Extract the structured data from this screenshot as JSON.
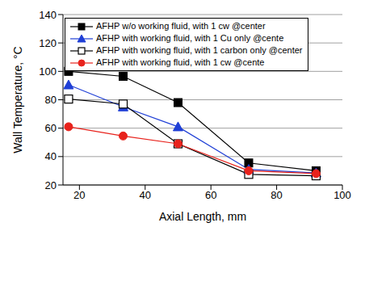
{
  "chart_data": {
    "type": "line",
    "x_label": "Axial Length, mm",
    "y_label": "Wall Temperature, °C",
    "xlim": [
      15,
      100
    ],
    "xticks": [
      20,
      40,
      60,
      80,
      100
    ],
    "ylim": [
      20,
      140
    ],
    "yticks": [
      20,
      40,
      60,
      80,
      100,
      120,
      140
    ],
    "grid": "y",
    "legend": "upper left",
    "x": [
      16.7,
      33.3,
      50,
      71.5,
      92
    ],
    "series": [
      {
        "name": "AFHP w/o working fluid, with 1 cw @center",
        "color": "#000000",
        "marker": "square",
        "values": [
          100,
          96.5,
          78,
          35.5,
          30
        ]
      },
      {
        "name": "AFHP with working fluid, with 1 Cu only @cente",
        "color": "#1f3fd6",
        "marker": "triangle",
        "values": [
          90.5,
          75,
          61,
          31,
          28.5
        ]
      },
      {
        "name": "AFHP with working fluid, with 1 carbon only @center",
        "color": "#000000",
        "marker": "open_square",
        "values": [
          80.5,
          77,
          49,
          27.5,
          26.5
        ]
      },
      {
        "name": "AFHP with working fluid, with 1 cw @cente",
        "color": "#e8221c",
        "marker": "circle",
        "values": [
          61,
          54.5,
          49,
          30,
          28
        ]
      }
    ]
  }
}
